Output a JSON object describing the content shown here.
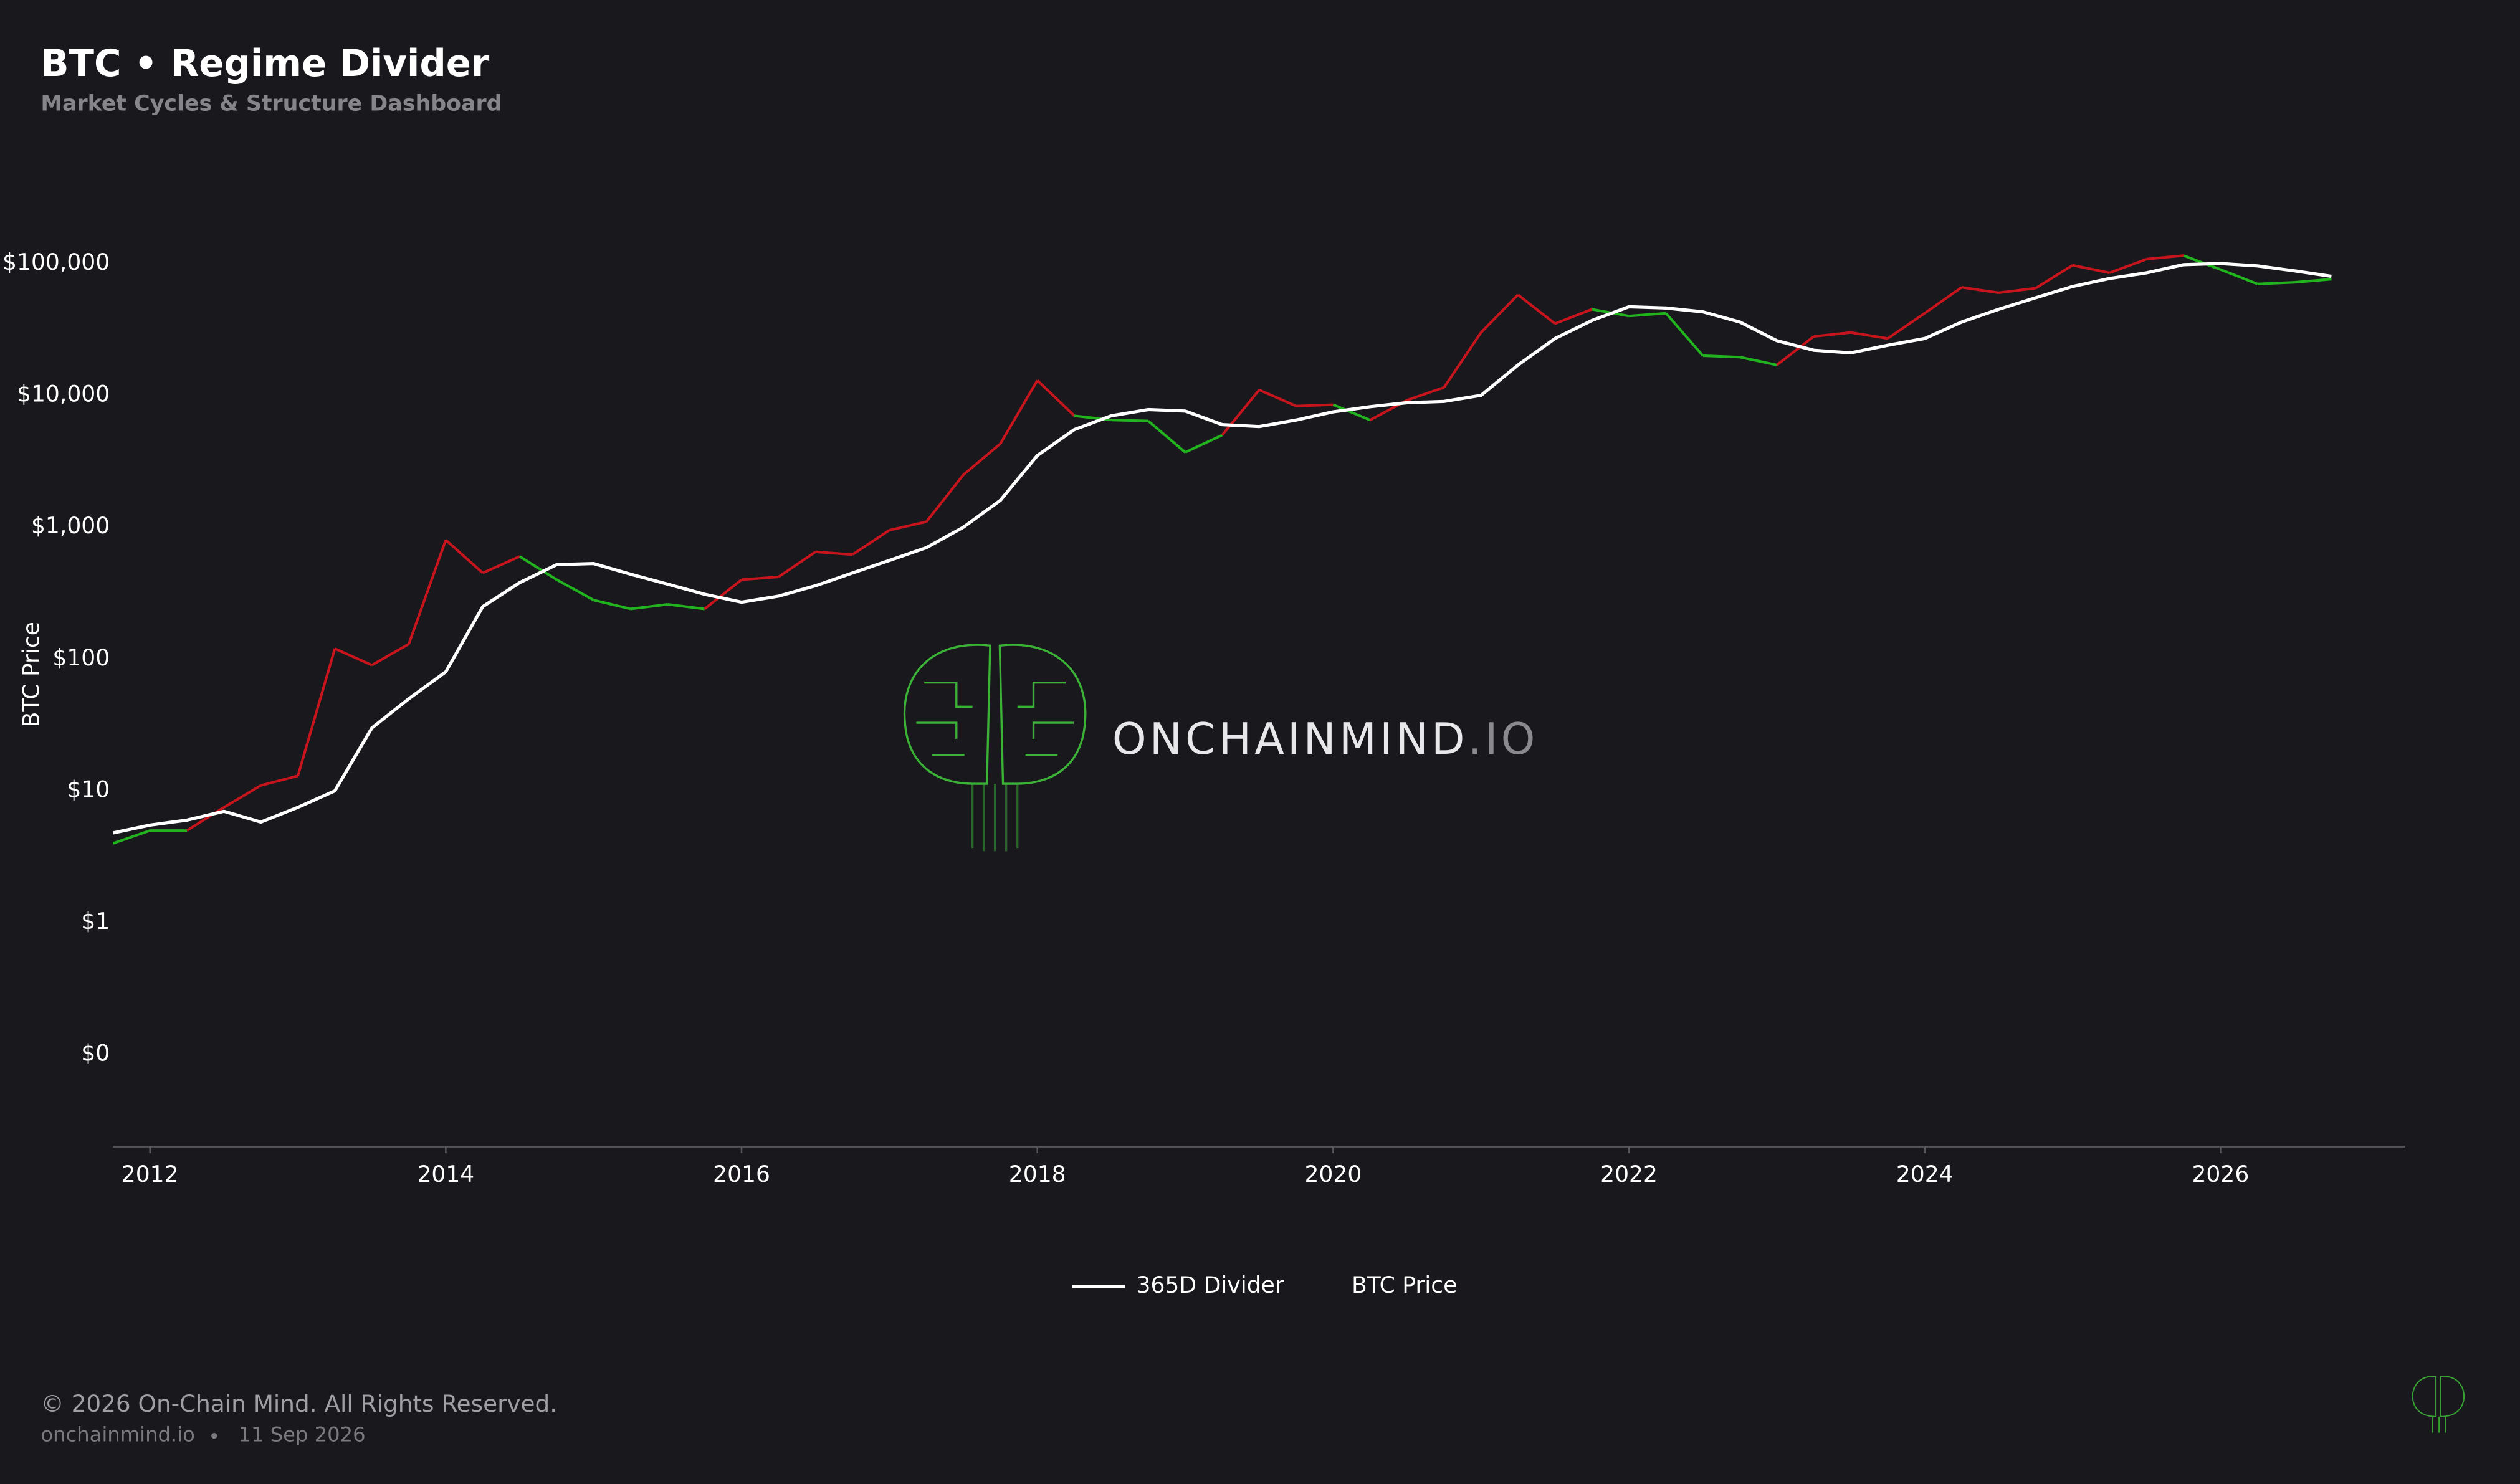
{
  "chart_data": {
    "type": "line",
    "title": "BTC • Regime Divider",
    "subtitle": "Market Cycles & Structure Dashboard",
    "y_label": "BTC Price",
    "log_y": true,
    "grid": false,
    "legend": "bottom",
    "x": [
      2011.75,
      2012,
      2012.25,
      2012.5,
      2012.75,
      2013,
      2013.25,
      2013.5,
      2013.75,
      2014,
      2014.25,
      2014.5,
      2014.75,
      2015,
      2015.25,
      2015.5,
      2015.75,
      2016,
      2016.25,
      2016.5,
      2016.75,
      2017,
      2017.25,
      2017.5,
      2017.75,
      2018,
      2018.25,
      2018.5,
      2018.75,
      2019,
      2019.25,
      2019.5,
      2019.75,
      2020,
      2020.25,
      2020.5,
      2020.75,
      2021,
      2021.25,
      2021.5,
      2021.75,
      2022,
      2022.25,
      2022.5,
      2022.75,
      2023,
      2023.25,
      2023.5,
      2023.75,
      2024,
      2024.25,
      2024.5,
      2024.75,
      2025,
      2025.25,
      2025.5,
      2025.75,
      2026,
      2026.25,
      2026.5,
      2026.75
    ],
    "series": [
      {
        "name": "365D Divider",
        "color": "#ffffff",
        "values": [
          4.8,
          5.5,
          6,
          7,
          5.8,
          7.5,
          10,
          30,
          50,
          80,
          250,
          380,
          520,
          530,
          440,
          370,
          310,
          270,
          300,
          360,
          450,
          560,
          700,
          1000,
          1600,
          3500,
          5500,
          7000,
          7800,
          7600,
          6000,
          5800,
          6500,
          7500,
          8200,
          8800,
          9000,
          10000,
          17000,
          27000,
          37000,
          47000,
          46000,
          43000,
          36000,
          26000,
          22000,
          21000,
          24000,
          27000,
          36000,
          45000,
          55000,
          67000,
          77000,
          85000,
          98000,
          100000,
          96000,
          88000,
          80000
        ]
      },
      {
        "name": "BTC Price",
        "color_above": "#c8141c",
        "color_below": "#22b41e",
        "values": [
          4,
          5,
          5,
          7.5,
          11,
          13,
          120,
          90,
          130,
          800,
          450,
          600,
          400,
          280,
          240,
          260,
          240,
          400,
          420,
          650,
          620,
          950,
          1100,
          2500,
          4300,
          13000,
          7000,
          6500,
          6400,
          3700,
          5000,
          11000,
          8300,
          8500,
          6500,
          9200,
          11500,
          30000,
          58000,
          35000,
          45000,
          40000,
          42000,
          20000,
          19500,
          17000,
          28000,
          30000,
          27000,
          42000,
          66000,
          60000,
          65000,
          97000,
          85000,
          108000,
          115000,
          90000,
          70000,
          72000,
          76000
        ]
      }
    ],
    "xlim": [
      2011.75,
      2027.25
    ],
    "xticks": [
      2012,
      2014,
      2016,
      2018,
      2020,
      2022,
      2024,
      2026
    ],
    "ylim": [
      0.02,
      1000000
    ],
    "yticks": [
      {
        "value": 0.1,
        "label": "$0"
      },
      {
        "value": 1,
        "label": "$1"
      },
      {
        "value": 10,
        "label": "$10"
      },
      {
        "value": 100,
        "label": "$100"
      },
      {
        "value": 1000,
        "label": "$1,000"
      },
      {
        "value": 10000,
        "label": "$10,000"
      },
      {
        "value": 100000,
        "label": "$100,000"
      }
    ]
  },
  "watermark": {
    "text": "ONCHAINMIND",
    "suffix": ".IO"
  },
  "footer": {
    "copyright": "© 2026 On-Chain Mind. All Rights Reserved.",
    "site": "onchainmind.io",
    "date": "11 Sep 2026"
  }
}
